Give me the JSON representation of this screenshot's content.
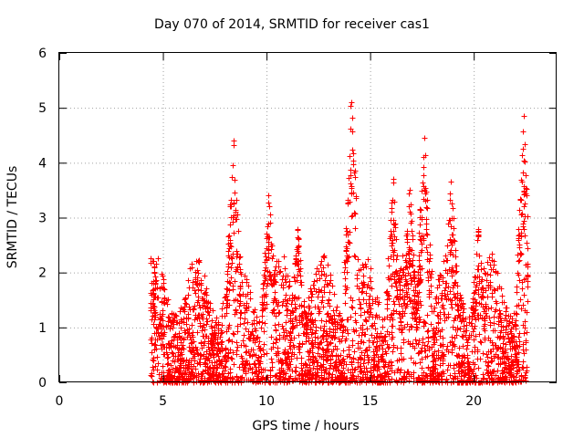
{
  "chart_data": {
    "type": "scatter",
    "title": "Day 070 of 2014, SRMTID for receiver cas1",
    "xlabel": "GPS time / hours",
    "ylabel": "SRMTID / TECUs",
    "xlim": [
      0,
      24
    ],
    "ylim": [
      0,
      6
    ],
    "xticks": [
      0,
      5,
      10,
      15,
      20
    ],
    "yticks": [
      0,
      1,
      2,
      3,
      4,
      5,
      6
    ],
    "grid": true,
    "marker": "+",
    "color": "#ff0000",
    "seed": 70,
    "points_per_hour": 190,
    "active_range_hours": [
      4.4,
      22.6
    ],
    "zero_value_markers_at_hours": [
      4.55,
      5.7,
      12.7,
      13.0,
      13.9,
      16.6,
      18.9,
      22.0
    ],
    "peak_events": [
      {
        "x": 4.6,
        "y": 2.1
      },
      {
        "x": 8.4,
        "y": 4.4
      },
      {
        "x": 10.1,
        "y": 3.4
      },
      {
        "x": 11.5,
        "y": 2.8
      },
      {
        "x": 14.1,
        "y": 5.1
      },
      {
        "x": 16.1,
        "y": 3.7
      },
      {
        "x": 16.9,
        "y": 3.5
      },
      {
        "x": 17.6,
        "y": 4.45
      },
      {
        "x": 18.9,
        "y": 3.65
      },
      {
        "x": 20.2,
        "y": 2.8
      },
      {
        "x": 22.4,
        "y": 4.85
      }
    ]
  }
}
